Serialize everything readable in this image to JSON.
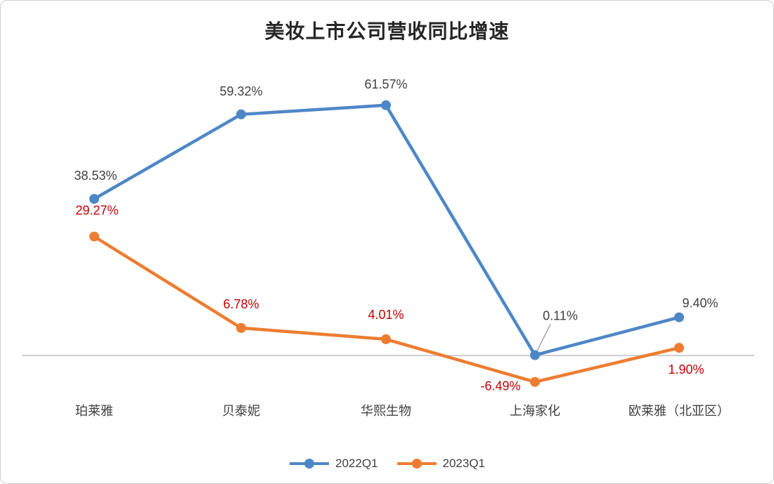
{
  "chart_data": {
    "type": "line",
    "title": "美妆上市公司营收同比增速",
    "categories": [
      "珀莱雅",
      "贝泰妮",
      "华熙生物",
      "上海家化",
      "欧莱雅（北亚区）"
    ],
    "series": [
      {
        "name": "2022Q1",
        "color": "#4E87C6",
        "label_color": "#404040",
        "values": [
          38.53,
          59.32,
          61.57,
          0.11,
          9.4
        ],
        "labels": [
          "38.53%",
          "59.32%",
          "61.57%",
          "0.11%",
          "9.40%"
        ]
      },
      {
        "name": "2023Q1",
        "color": "#ED7D31",
        "label_color": "#C00000",
        "values": [
          29.27,
          6.78,
          4.01,
          -6.49,
          1.9
        ],
        "labels": [
          "29.27%",
          "6.78%",
          "4.01%",
          "-6.49%",
          "1.90%"
        ]
      }
    ],
    "xlabel": "",
    "ylabel": "",
    "ylim": [
      -10,
      70
    ],
    "grid": false,
    "legend_position": "bottom",
    "zero_axis_line": true,
    "axis_line_color": "#BFBFBF",
    "callout_line_color": "#A6A6A6"
  }
}
